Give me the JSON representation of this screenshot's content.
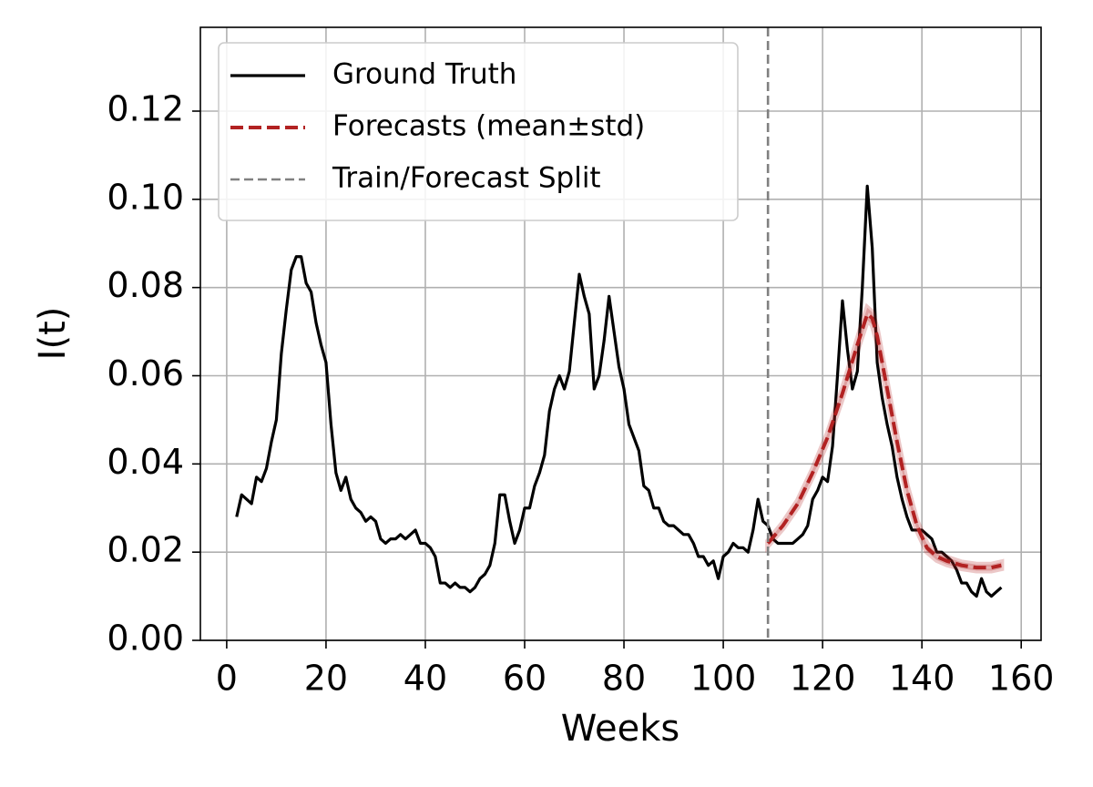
{
  "chart_data": {
    "type": "line",
    "xlabel": "Weeks",
    "ylabel": "I(t)",
    "xlim": [
      -5.3,
      164
    ],
    "ylim": [
      0,
      0.139
    ],
    "xticks": [
      0,
      20,
      40,
      60,
      80,
      100,
      120,
      140,
      160
    ],
    "yticks": [
      {
        "value": 0,
        "label": "0.00"
      },
      {
        "value": 0.02,
        "label": "0.02"
      },
      {
        "value": 0.04,
        "label": "0.04"
      },
      {
        "value": 0.06,
        "label": "0.06"
      },
      {
        "value": 0.08,
        "label": "0.08"
      },
      {
        "value": 0.1,
        "label": "0.10"
      },
      {
        "value": 0.12,
        "label": "0.12"
      }
    ],
    "grid": true,
    "legend": "upper left",
    "series": [
      {
        "name": "Ground Truth",
        "color": "#000000",
        "style": "solid",
        "x": [
          2,
          3,
          4,
          5,
          6,
          7,
          8,
          9,
          10,
          11,
          12,
          13,
          14,
          15,
          16,
          17,
          18,
          19,
          20,
          21,
          22,
          23,
          24,
          25,
          26,
          27,
          28,
          29,
          30,
          31,
          32,
          33,
          34,
          35,
          36,
          37,
          38,
          39,
          40,
          41,
          42,
          43,
          44,
          45,
          46,
          47,
          48,
          49,
          50,
          51,
          52,
          53,
          54,
          55,
          56,
          57,
          58,
          59,
          60,
          61,
          62,
          63,
          64,
          65,
          66,
          67,
          68,
          69,
          70,
          71,
          72,
          73,
          74,
          75,
          76,
          77,
          78,
          79,
          80,
          81,
          82,
          83,
          84,
          85,
          86,
          87,
          88,
          89,
          90,
          91,
          92,
          93,
          94,
          95,
          96,
          97,
          98,
          99,
          100,
          101,
          102,
          103,
          104,
          105,
          106,
          107,
          108,
          109,
          110,
          111,
          112,
          113,
          114,
          115,
          116,
          117,
          118,
          119,
          120,
          121,
          122,
          123,
          124,
          125,
          126,
          127,
          128,
          129,
          130,
          131,
          132,
          133,
          134,
          135,
          136,
          137,
          138,
          139,
          140,
          141,
          142,
          143,
          144,
          145,
          146,
          147,
          148,
          149,
          150,
          151,
          152,
          153,
          154,
          155,
          156
        ],
        "values": [
          0.028,
          0.033,
          0.032,
          0.031,
          0.037,
          0.036,
          0.039,
          0.045,
          0.05,
          0.065,
          0.075,
          0.084,
          0.087,
          0.087,
          0.081,
          0.079,
          0.072,
          0.067,
          0.063,
          0.049,
          0.038,
          0.034,
          0.037,
          0.032,
          0.03,
          0.029,
          0.027,
          0.028,
          0.027,
          0.023,
          0.022,
          0.023,
          0.023,
          0.024,
          0.023,
          0.024,
          0.025,
          0.022,
          0.022,
          0.021,
          0.019,
          0.013,
          0.013,
          0.012,
          0.013,
          0.012,
          0.012,
          0.011,
          0.012,
          0.014,
          0.015,
          0.017,
          0.022,
          0.033,
          0.033,
          0.027,
          0.022,
          0.025,
          0.03,
          0.03,
          0.035,
          0.038,
          0.042,
          0.052,
          0.057,
          0.06,
          0.057,
          0.061,
          0.072,
          0.083,
          0.078,
          0.074,
          0.057,
          0.06,
          0.068,
          0.078,
          0.07,
          0.062,
          0.057,
          0.049,
          0.046,
          0.043,
          0.035,
          0.034,
          0.03,
          0.03,
          0.027,
          0.026,
          0.026,
          0.025,
          0.024,
          0.024,
          0.022,
          0.019,
          0.019,
          0.017,
          0.018,
          0.014,
          0.019,
          0.02,
          0.022,
          0.021,
          0.021,
          0.02,
          0.025,
          0.032,
          0.027,
          0.026,
          0.023,
          0.022,
          0.022,
          0.022,
          0.022,
          0.023,
          0.024,
          0.026,
          0.032,
          0.034,
          0.037,
          0.036,
          0.044,
          0.06,
          0.077,
          0.066,
          0.057,
          0.061,
          0.08,
          0.103,
          0.089,
          0.063,
          0.055,
          0.049,
          0.044,
          0.037,
          0.032,
          0.028,
          0.025,
          0.025,
          0.025,
          0.024,
          0.023,
          0.02,
          0.02,
          0.019,
          0.018,
          0.016,
          0.013,
          0.013,
          0.011,
          0.01,
          0.014,
          0.011,
          0.01,
          0.011,
          0.012
        ]
      },
      {
        "name": "Forecasts (mean±std)",
        "color": "#b22222",
        "style": "dashed",
        "x": [
          109,
          112,
          115,
          118,
          121,
          124,
          127,
          129,
          130,
          131,
          133,
          135,
          137,
          139,
          141,
          143,
          145,
          148,
          151,
          154,
          156
        ],
        "values": [
          0.022,
          0.026,
          0.031,
          0.038,
          0.046,
          0.056,
          0.067,
          0.074,
          0.073,
          0.069,
          0.057,
          0.045,
          0.034,
          0.026,
          0.021,
          0.019,
          0.018,
          0.017,
          0.0165,
          0.0165,
          0.017
        ],
        "std": [
          0.0005,
          0.0006,
          0.0007,
          0.0008,
          0.0009,
          0.001,
          0.0012,
          0.0014,
          0.0014,
          0.0014,
          0.0013,
          0.0012,
          0.0011,
          0.001,
          0.0009,
          0.0008,
          0.0008,
          0.0007,
          0.0007,
          0.0007,
          0.0007
        ]
      }
    ],
    "vlines": [
      {
        "name": "Train/Forecast Split",
        "color": "#808080",
        "x": 109
      }
    ]
  }
}
